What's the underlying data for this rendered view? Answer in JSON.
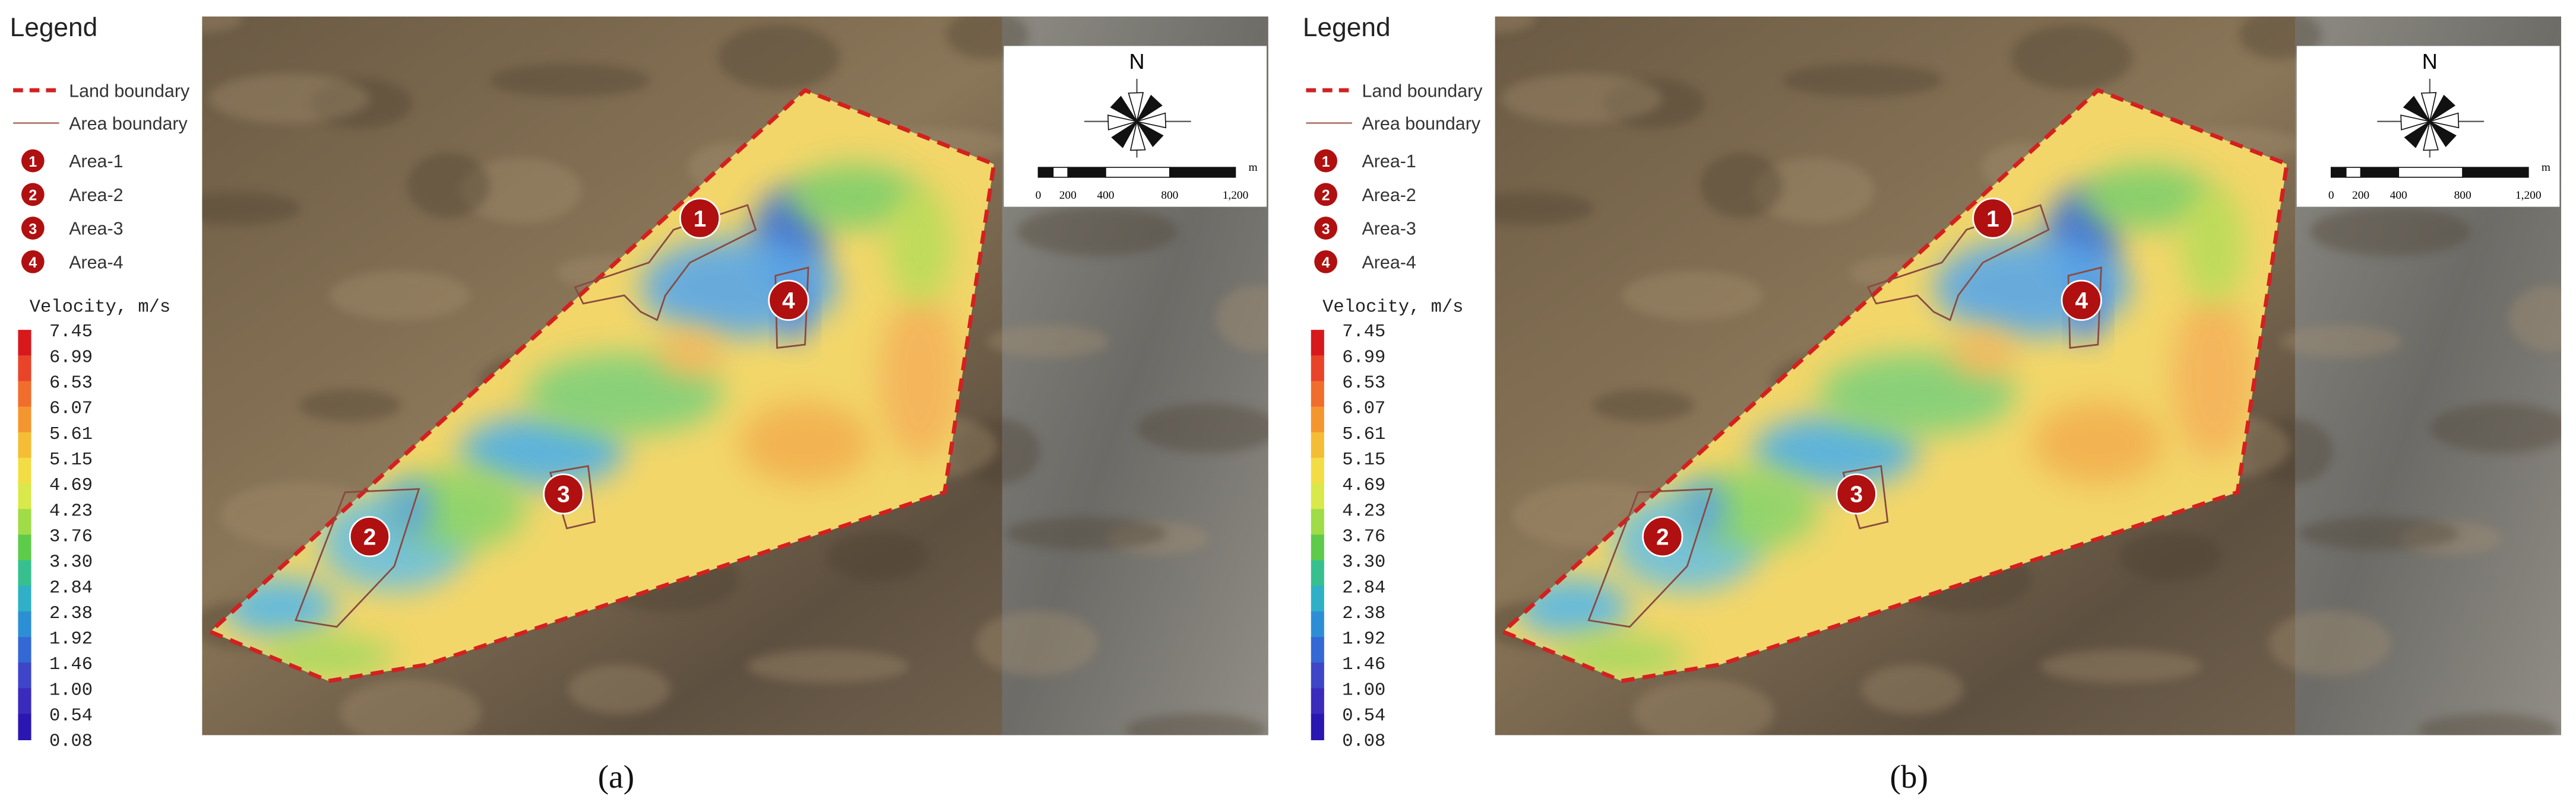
{
  "panels": [
    {
      "legend": {
        "title": "Legend",
        "lines": [
          "Land boundary",
          "Area boundary"
        ],
        "areas": [
          {
            "icon": "1",
            "label": "Area-1"
          },
          {
            "icon": "2",
            "label": "Area-2"
          },
          {
            "icon": "3",
            "label": "Area-3"
          },
          {
            "icon": "4",
            "label": "Area-4"
          }
        ],
        "velocity_title": "Velocity, m/s",
        "velocity_labels": [
          "7.45",
          "6.99",
          "6.53",
          "6.07",
          "5.61",
          "5.15",
          "4.69",
          "4.23",
          "3.76",
          "3.30",
          "2.84",
          "2.38",
          "1.92",
          "1.46",
          "1.00",
          "0.54",
          "0.08"
        ]
      },
      "compass": {
        "north": "N",
        "scale_labels": [
          "0",
          "200",
          "400",
          "800",
          "1,200"
        ],
        "scale_unit": "m"
      },
      "markers": [
        "1",
        "2",
        "3",
        "4"
      ],
      "caption": "(a)"
    },
    {
      "legend": {
        "title": "Legend",
        "lines": [
          "Land boundary",
          "Area boundary"
        ],
        "areas": [
          {
            "icon": "1",
            "label": "Area-1"
          },
          {
            "icon": "2",
            "label": "Area-2"
          },
          {
            "icon": "3",
            "label": "Area-3"
          },
          {
            "icon": "4",
            "label": "Area-4"
          }
        ],
        "velocity_title": "Velocity, m/s",
        "velocity_labels": [
          "7.45",
          "6.99",
          "6.53",
          "6.07",
          "5.61",
          "5.15",
          "4.69",
          "4.23",
          "3.76",
          "3.30",
          "2.84",
          "2.38",
          "1.92",
          "1.46",
          "1.00",
          "0.54",
          "0.08"
        ]
      },
      "compass": {
        "north": "N",
        "scale_labels": [
          "0",
          "200",
          "400",
          "800",
          "1,200"
        ],
        "scale_unit": "m"
      },
      "markers": [
        "1",
        "2",
        "3",
        "4"
      ],
      "caption": "(b)"
    }
  ]
}
